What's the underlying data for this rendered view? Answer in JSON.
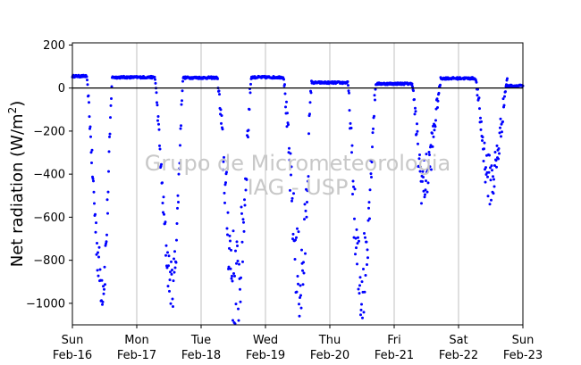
{
  "chart_data": {
    "type": "scatter",
    "title": "",
    "ylabel": "Net radiation (W/m²)",
    "ylabel_main": "Net radiation (W/m",
    "ylabel_sup": "2",
    "ylabel_close": ")",
    "ylim": [
      -1100,
      210
    ],
    "xlim_days": [
      0,
      7
    ],
    "yticks": [
      200,
      0,
      -200,
      -400,
      -600,
      -800,
      -1000
    ],
    "ytick_labels": [
      "200",
      "0",
      "−200",
      "−400",
      "−600",
      "−800",
      "−1000"
    ],
    "xticks": [
      {
        "day": 0,
        "dow": "Sun",
        "date": "Feb-16"
      },
      {
        "day": 1,
        "dow": "Mon",
        "date": "Feb-17"
      },
      {
        "day": 2,
        "dow": "Tue",
        "date": "Feb-18"
      },
      {
        "day": 3,
        "dow": "Wed",
        "date": "Feb-19"
      },
      {
        "day": 4,
        "dow": "Thu",
        "date": "Feb-20"
      },
      {
        "day": 5,
        "dow": "Fri",
        "date": "Feb-21"
      },
      {
        "day": 6,
        "dow": "Sat",
        "date": "Feb-22"
      },
      {
        "day": 7,
        "dow": "Sun",
        "date": "Feb-23"
      }
    ],
    "vertical_grid": true,
    "zero_line": true,
    "point_color": "#0000ff",
    "series": [
      {
        "values_description_only": "",
        "daily_profiles": [
          {
            "day": 0,
            "night_level": 55,
            "night_start": 0.0,
            "night_end": 0.22,
            "min": -910,
            "min_at": 0.47,
            "recover_at": 0.62,
            "scatter": 120
          },
          {
            "day": 1,
            "night_level": 50,
            "night_start": 0.62,
            "night_end": 1.28,
            "min": -915,
            "min_at": 1.55,
            "recover_at": 1.72,
            "scatter": 110
          },
          {
            "day": 2,
            "night_level": 48,
            "night_start": 1.72,
            "night_end": 2.25,
            "min": -925,
            "min_at": 2.55,
            "recover_at": 2.78,
            "scatter": 250
          },
          {
            "day": 3,
            "night_level": 50,
            "night_start": 2.78,
            "night_end": 3.28,
            "min": -895,
            "min_at": 3.55,
            "recover_at": 3.72,
            "scatter": 220
          },
          {
            "day": 4,
            "night_level": 25,
            "night_start": 3.72,
            "night_end": 4.28,
            "min": -920,
            "min_at": 4.48,
            "recover_at": 4.72,
            "scatter": 220
          },
          {
            "day": 5,
            "night_level": 20,
            "night_start": 4.72,
            "night_end": 5.28,
            "min": -440,
            "min_at": 5.45,
            "recover_at": 5.72,
            "scatter": 120
          },
          {
            "day": 6,
            "night_level": 45,
            "night_start": 5.72,
            "night_end": 6.26,
            "min": -430,
            "min_at": 6.5,
            "recover_at": 6.76,
            "scatter": 120
          },
          {
            "day": 7,
            "night_level": 10,
            "night_start": 6.76,
            "night_end": 7.0,
            "min": 0,
            "min_at": 7.0,
            "recover_at": 7.0,
            "scatter": 0
          }
        ]
      }
    ]
  },
  "watermark": {
    "line1": "Grupo de Micrometeorologia",
    "line2": "IAG - USP"
  }
}
